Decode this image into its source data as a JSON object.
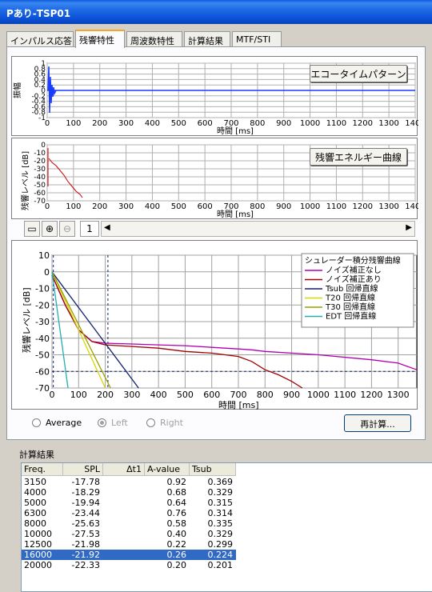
{
  "window": {
    "title": "Pあり-TSP01"
  },
  "tabs": [
    {
      "label": "インパルス応答"
    },
    {
      "label": "残響特性"
    },
    {
      "label": "周波数特性"
    },
    {
      "label": "計算結果"
    },
    {
      "label": "MTF/STI"
    }
  ],
  "active_tab": 1,
  "colors": {
    "echo_line": "#1a3cff",
    "energy_line": "#cc0000",
    "no_noise_corr": "#b000b0",
    "noise_corr": "#a00000",
    "tsub_line": "#102070",
    "t20_line": "#d6d600",
    "t30_line": "#9aa000",
    "edt_line": "#20b0b0",
    "selection": "#316ac5"
  },
  "echo_chart": {
    "button_label": "エコータイムパターン",
    "ylabel": "振幅",
    "xlabel": "時間 [ms]",
    "y_ticks": [
      "1",
      "0.8",
      "0.6",
      "0.4",
      "0.2",
      "0",
      "-0.2",
      "-0.4",
      "-0.6",
      "-0.8",
      "-1"
    ],
    "x_ticks": [
      "0",
      "100",
      "200",
      "300",
      "400",
      "500",
      "600",
      "700",
      "800",
      "900",
      "1000",
      "1100",
      "1200",
      "1300",
      "1400"
    ]
  },
  "energy_chart": {
    "button_label": "残響エネルギー曲線",
    "ylabel": "残響レベル [dB]",
    "xlabel": "時間 [ms]",
    "y_ticks": [
      "0",
      "-10",
      "-20",
      "-30",
      "-40",
      "-50",
      "-60",
      "-70"
    ],
    "x_ticks": [
      "0",
      "100",
      "200",
      "300",
      "400",
      "500",
      "600",
      "700",
      "800",
      "900",
      "1000",
      "1100",
      "1200",
      "1300",
      "1400"
    ]
  },
  "toolbar": {
    "page_value": "1"
  },
  "chart_data": {
    "type": "line",
    "ylabel": "残響レベル [dB]",
    "xlabel": "時間 [ms]",
    "xlim": [
      0,
      1370
    ],
    "ylim": [
      -70,
      10
    ],
    "x_ticks": [
      "0",
      "100",
      "200",
      "300",
      "400",
      "500",
      "600",
      "700",
      "800",
      "900",
      "1000",
      "1100",
      "1200",
      "1300"
    ],
    "y_ticks": [
      "10",
      "0",
      "-10",
      "-20",
      "-30",
      "-40",
      "-50",
      "-60",
      "-70"
    ],
    "legend_title": "シュレーダー積分残響曲線",
    "grid": true,
    "series": [
      {
        "name": "ノイズ補正なし",
        "color_key": "no_noise_corr",
        "x": [
          0,
          50,
          100,
          150,
          200,
          300,
          400,
          500,
          600,
          700,
          750,
          800,
          1000,
          1200,
          1300,
          1370
        ],
        "y": [
          -2,
          -20,
          -35,
          -42,
          -43,
          -43.5,
          -44,
          -44.5,
          -45.5,
          -46.5,
          -47,
          -48,
          -50,
          -53,
          -55,
          -59
        ]
      },
      {
        "name": "ノイズ補正あり",
        "color_key": "noise_corr",
        "x": [
          0,
          50,
          100,
          150,
          200,
          300,
          400,
          500,
          600,
          700,
          750,
          800,
          850,
          900,
          940
        ],
        "y": [
          -2,
          -20,
          -35,
          -42,
          -44,
          -45,
          -46,
          -48,
          -49,
          -51,
          -54,
          -59,
          -62,
          -66,
          -70
        ]
      },
      {
        "name": "Tsub 回帰直線",
        "color_key": "tsub_line",
        "x": [
          0,
          325
        ],
        "y": [
          0,
          -70
        ]
      },
      {
        "name": "T20 回帰直線",
        "color_key": "t20_line",
        "x": [
          0,
          200
        ],
        "y": [
          0,
          -70
        ]
      },
      {
        "name": "T30 回帰直線",
        "color_key": "t30_line",
        "x": [
          0,
          220
        ],
        "y": [
          0,
          -70
        ]
      },
      {
        "name": "EDT 回帰直線",
        "color_key": "edt_line",
        "x": [
          0,
          60
        ],
        "y": [
          0,
          -70
        ]
      }
    ]
  },
  "options": {
    "average": "Average",
    "left": "Left",
    "right": "Right",
    "recalc_button": "再計算..."
  },
  "results": {
    "group_label": "計算結果",
    "columns": [
      "Freq.",
      "SPL",
      "Δt1",
      "A-value",
      "Tsub"
    ],
    "rows": [
      {
        "freq": "3150",
        "spl": "-17.78",
        "dt1": "",
        "aval": "0.92",
        "tsub": "0.369"
      },
      {
        "freq": "4000",
        "spl": "-18.29",
        "dt1": "",
        "aval": "0.68",
        "tsub": "0.329"
      },
      {
        "freq": "5000",
        "spl": "-19.94",
        "dt1": "",
        "aval": "0.64",
        "tsub": "0.315"
      },
      {
        "freq": "6300",
        "spl": "-23.44",
        "dt1": "",
        "aval": "0.76",
        "tsub": "0.314"
      },
      {
        "freq": "8000",
        "spl": "-25.63",
        "dt1": "",
        "aval": "0.58",
        "tsub": "0.335"
      },
      {
        "freq": "10000",
        "spl": "-27.53",
        "dt1": "",
        "aval": "0.40",
        "tsub": "0.329"
      },
      {
        "freq": "12500",
        "spl": "-21.98",
        "dt1": "",
        "aval": "0.22",
        "tsub": "0.299"
      },
      {
        "freq": "16000",
        "spl": "-21.92",
        "dt1": "",
        "aval": "0.26",
        "tsub": "0.224"
      },
      {
        "freq": "20000",
        "spl": "-22.33",
        "dt1": "",
        "aval": "0.20",
        "tsub": "0.201"
      }
    ],
    "selected_index": 7
  }
}
